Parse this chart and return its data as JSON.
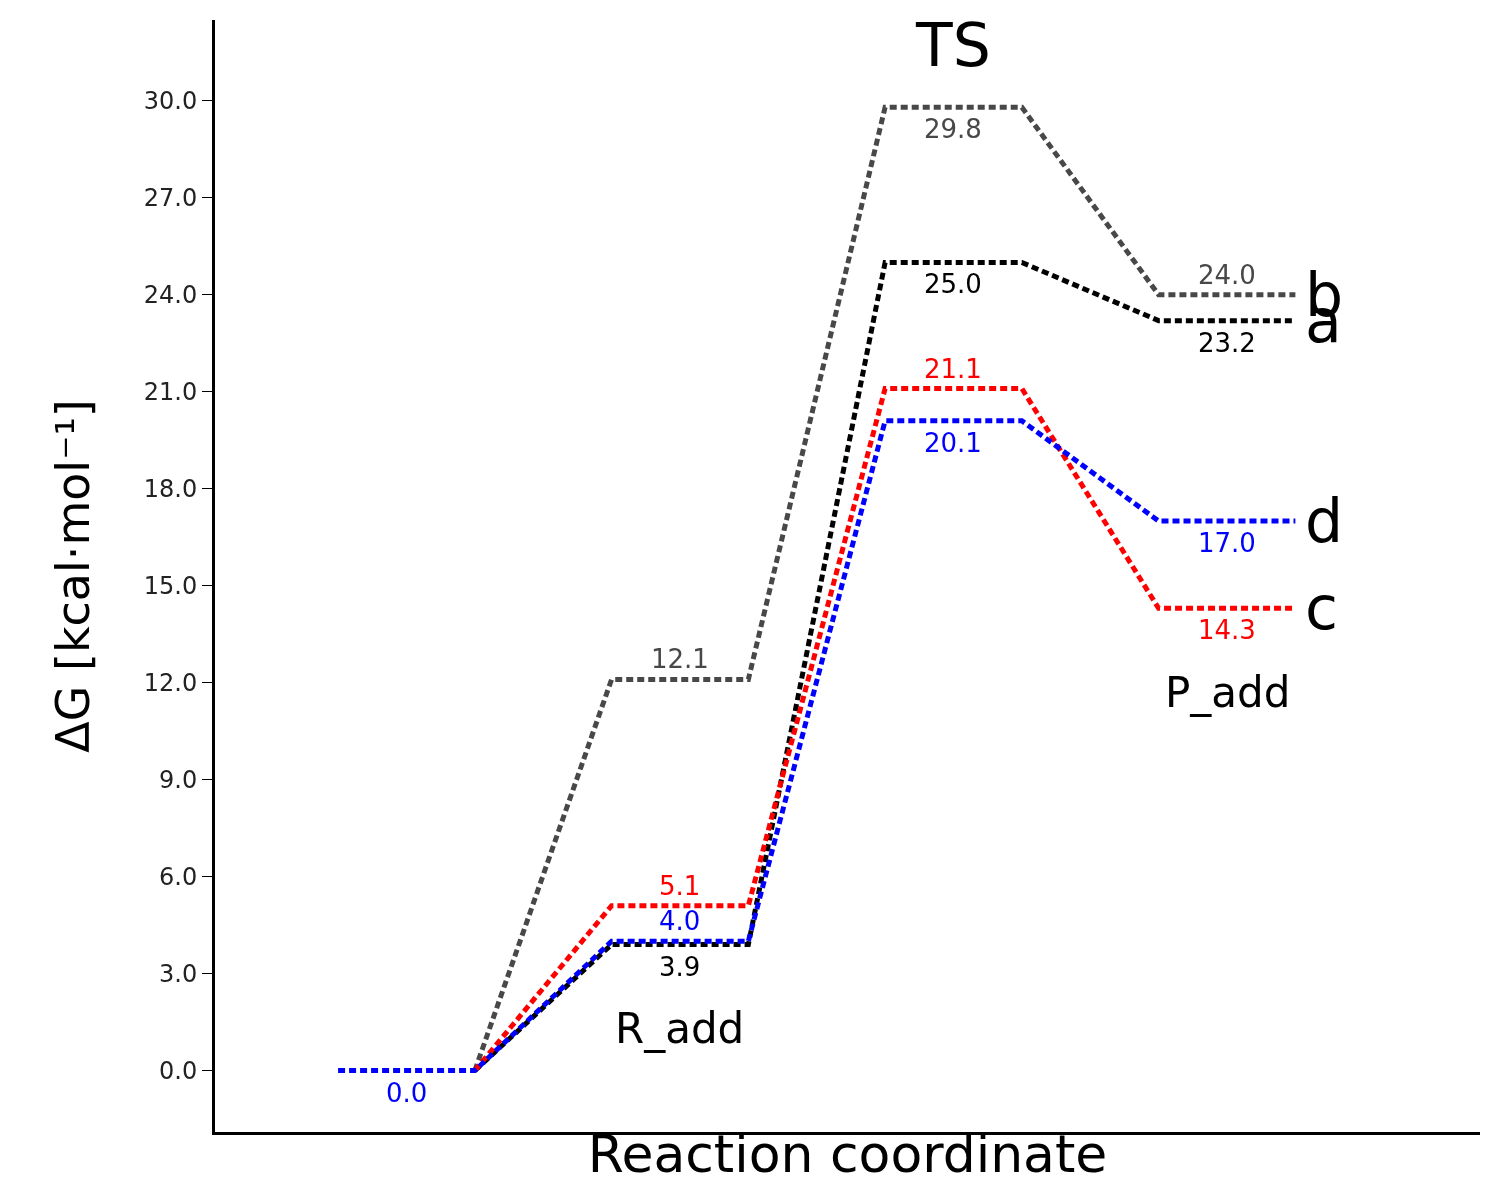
{
  "chart_data": {
    "type": "line",
    "xlabel": "Reaction coordinate",
    "ylabel": "ΔG [kcal·mol⁻¹]",
    "categories": [
      null,
      null,
      null,
      null,
      null,
      null,
      null,
      null
    ],
    "line_style": "dashed",
    "legend": "right",
    "grid": false,
    "ylim": [
      -1.9,
      32.5
    ],
    "yticks": [
      {
        "value": 0,
        "label": "0.0"
      },
      {
        "value": 3,
        "label": "3.0"
      },
      {
        "value": 6,
        "label": "6.0"
      },
      {
        "value": 9,
        "label": "9.0"
      },
      {
        "value": 12,
        "label": "12.0"
      },
      {
        "value": 15,
        "label": "15.0"
      },
      {
        "value": 18,
        "label": "18.0"
      },
      {
        "value": 21,
        "label": "21.0"
      },
      {
        "value": 24,
        "label": "24.0"
      },
      {
        "value": 27,
        "label": "27.0"
      },
      {
        "value": 30,
        "label": "30.0"
      }
    ],
    "series": [
      {
        "name": "b",
        "color": "#484848",
        "values": [
          null,
          0.0,
          12.1,
          12.1,
          29.8,
          29.8,
          24.0,
          24.0
        ],
        "value_labels": [
          null,
          null,
          "12.1",
          null,
          "29.8",
          null,
          "24.0",
          null
        ]
      },
      {
        "name": "a",
        "color": "#000000",
        "values": [
          null,
          0.0,
          3.9,
          3.9,
          25.0,
          25.0,
          23.2,
          23.2
        ],
        "value_labels": [
          null,
          null,
          "3.9",
          null,
          "25.0",
          null,
          "23.2",
          null
        ]
      },
      {
        "name": "c",
        "color": "#ff0000",
        "values": [
          null,
          0.0,
          5.1,
          5.1,
          21.1,
          21.1,
          14.3,
          14.3
        ],
        "value_labels": [
          null,
          null,
          "5.1",
          null,
          "21.1",
          null,
          "14.3",
          null
        ]
      },
      {
        "name": "d",
        "color": "#0000ff",
        "values": [
          0.0,
          0.0,
          4.0,
          4.0,
          20.1,
          20.1,
          17.0,
          17.0
        ],
        "value_labels": [
          "0.0",
          null,
          "4.0",
          null,
          "20.1",
          null,
          "17.0",
          null
        ]
      }
    ],
    "annotations": [
      "R_add",
      "TS",
      "P_add"
    ]
  }
}
